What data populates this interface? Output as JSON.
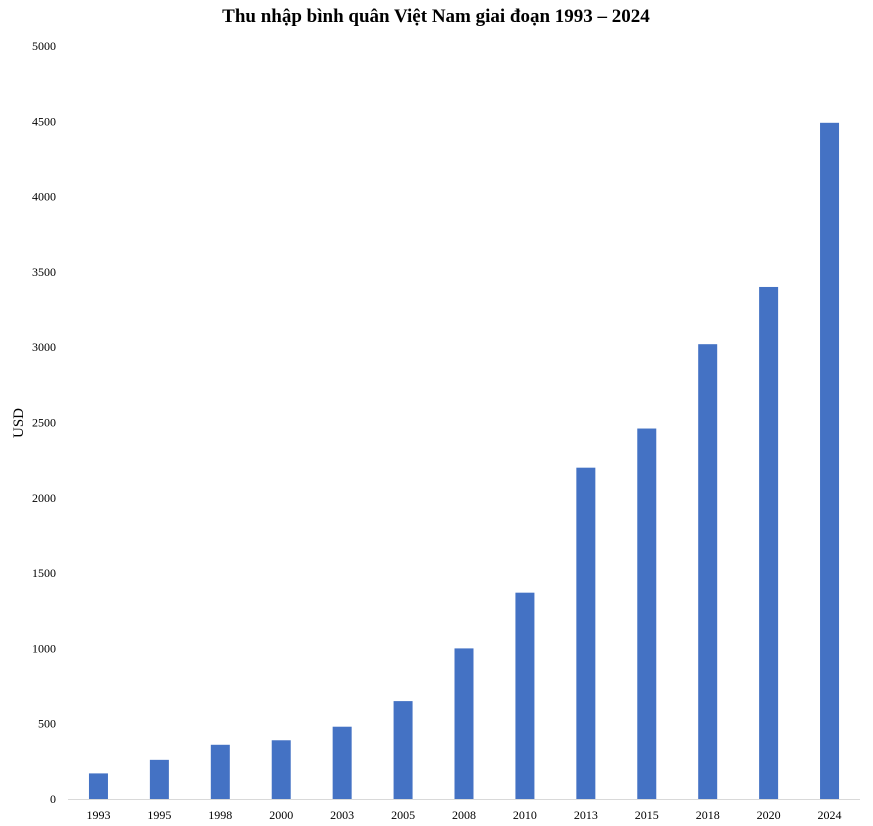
{
  "chart_data": {
    "type": "bar",
    "title": "Thu nhập bình quân Việt Nam giai đoạn 1993 – 2024",
    "xlabel": "",
    "ylabel": "USD",
    "categories": [
      "1993",
      "1995",
      "1998",
      "2000",
      "2003",
      "2005",
      "2008",
      "2010",
      "2013",
      "2015",
      "2018",
      "2020",
      "2024"
    ],
    "values": [
      170,
      260,
      360,
      390,
      480,
      650,
      1000,
      1370,
      2200,
      2460,
      3020,
      3400,
      4490
    ],
    "ylim": [
      0,
      5000
    ],
    "yticks": [
      "0",
      "500",
      "1000",
      "1500",
      "2000",
      "2500",
      "3000",
      "3500",
      "4000",
      "4500",
      "5000"
    ],
    "grid": false,
    "legend": "none",
    "bar_color": "#4472C4",
    "axis_color": "#D9D9D9"
  }
}
